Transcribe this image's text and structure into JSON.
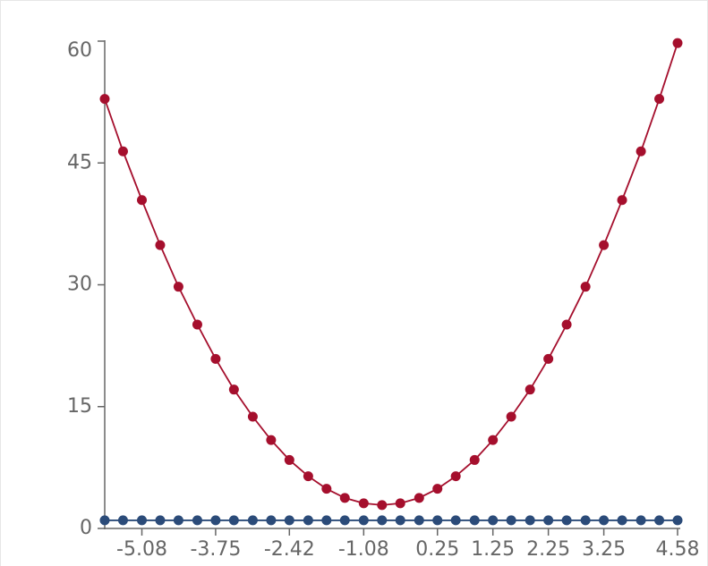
{
  "chart_data": {
    "type": "line",
    "x": [
      -5.75,
      -5.42,
      -5.08,
      -4.75,
      -4.42,
      -4.08,
      -3.75,
      -3.42,
      -3.08,
      -2.75,
      -2.42,
      -2.08,
      -1.75,
      -1.42,
      -1.08,
      -0.75,
      -0.42,
      -0.08,
      0.25,
      0.58,
      0.92,
      1.25,
      1.58,
      1.92,
      2.25,
      2.58,
      2.92,
      3.25,
      3.58,
      3.92,
      4.25,
      4.58
    ],
    "series": [
      {
        "color": "#a50f2d",
        "values": [
          52.88,
          46.43,
          40.43,
          34.88,
          29.76,
          25.1,
          20.88,
          17.1,
          13.76,
          10.88,
          8.43,
          6.43,
          4.88,
          3.76,
          3.1,
          2.88,
          3.1,
          3.76,
          4.88,
          6.43,
          8.43,
          10.88,
          13.76,
          17.1,
          20.88,
          25.1,
          29.76,
          34.88,
          40.43,
          46.43,
          52.88,
          59.76
        ]
      },
      {
        "color": "#2b4b79",
        "values": [
          1,
          1,
          1,
          1,
          1,
          1,
          1,
          1,
          1,
          1,
          1,
          1,
          1,
          1,
          1,
          1,
          1,
          1,
          1,
          1,
          1,
          1,
          1,
          1,
          1,
          1,
          1,
          1,
          1,
          1,
          1,
          1
        ]
      }
    ],
    "xlim": [
      -5.75,
      4.58
    ],
    "xticks": [
      -5.08,
      -3.75,
      -2.42,
      -1.08,
      0.25,
      1.25,
      2.25,
      3.25,
      4.58
    ],
    "ylim": [
      0,
      60
    ],
    "yticks": [
      0,
      15,
      30,
      45,
      60
    ]
  }
}
